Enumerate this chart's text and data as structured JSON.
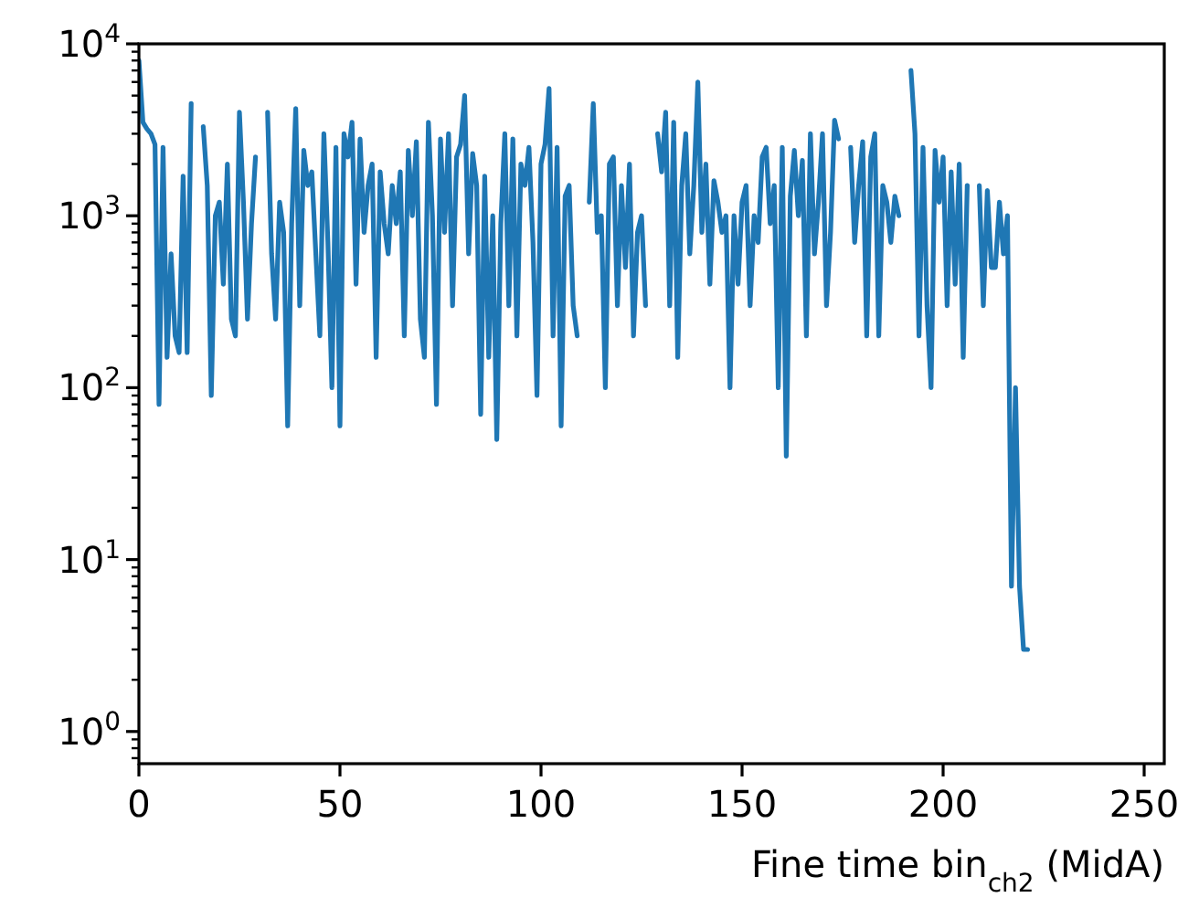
{
  "chart_data": {
    "type": "line",
    "xlabel": "Fine time bin$_{ch2}$ (MidA)",
    "log": "y",
    "grid": false,
    "marker": "none",
    "line_style": "solid",
    "xlim": [
      0,
      255
    ],
    "ylim": [
      0.65,
      10000
    ],
    "xticks": [
      0,
      50,
      100,
      150,
      200,
      250
    ],
    "yticks": [
      {
        "value": 0.7,
        "label": null
      },
      {
        "value": 0.8,
        "label": null
      },
      {
        "value": 0.9,
        "label": null
      },
      {
        "value": 1,
        "label": "10$^{0}$"
      },
      {
        "value": 2,
        "label": null
      },
      {
        "value": 3,
        "label": null
      },
      {
        "value": 4,
        "label": null
      },
      {
        "value": 5,
        "label": null
      },
      {
        "value": 6,
        "label": null
      },
      {
        "value": 7,
        "label": null
      },
      {
        "value": 8,
        "label": null
      },
      {
        "value": 9,
        "label": null
      },
      {
        "value": 10,
        "label": "10$^{1}$"
      },
      {
        "value": 20,
        "label": null
      },
      {
        "value": 30,
        "label": null
      },
      {
        "value": 40,
        "label": null
      },
      {
        "value": 50,
        "label": null
      },
      {
        "value": 60,
        "label": null
      },
      {
        "value": 70,
        "label": null
      },
      {
        "value": 80,
        "label": null
      },
      {
        "value": 90,
        "label": null
      },
      {
        "value": 100,
        "label": "10$^{2}$"
      },
      {
        "value": 200,
        "label": null
      },
      {
        "value": 300,
        "label": null
      },
      {
        "value": 400,
        "label": null
      },
      {
        "value": 500,
        "label": null
      },
      {
        "value": 600,
        "label": null
      },
      {
        "value": 700,
        "label": null
      },
      {
        "value": 800,
        "label": null
      },
      {
        "value": 900,
        "label": null
      },
      {
        "value": 1000,
        "label": "10$^{3}$"
      },
      {
        "value": 2000,
        "label": null
      },
      {
        "value": 3000,
        "label": null
      },
      {
        "value": 4000,
        "label": null
      },
      {
        "value": 5000,
        "label": null
      },
      {
        "value": 6000,
        "label": null
      },
      {
        "value": 7000,
        "label": null
      },
      {
        "value": 8000,
        "label": null
      },
      {
        "value": 9000,
        "label": null
      },
      {
        "value": 10000,
        "label": "10$^{4}$"
      }
    ],
    "series": [
      {
        "color": "#1f77b4",
        "x": [
          0,
          1,
          2,
          3,
          4,
          5,
          6,
          7,
          8,
          9,
          10,
          11,
          12,
          13,
          14,
          15,
          16,
          17,
          18,
          19,
          20,
          21,
          22,
          23,
          24,
          25,
          26,
          27,
          28,
          29,
          30,
          31,
          32,
          33,
          34,
          35,
          36,
          37,
          38,
          39,
          40,
          41,
          42,
          43,
          44,
          45,
          46,
          47,
          48,
          49,
          50,
          51,
          52,
          53,
          54,
          55,
          56,
          57,
          58,
          59,
          60,
          61,
          62,
          63,
          64,
          65,
          66,
          67,
          68,
          69,
          70,
          71,
          72,
          73,
          74,
          75,
          76,
          77,
          78,
          79,
          80,
          81,
          82,
          83,
          84,
          85,
          86,
          87,
          88,
          89,
          90,
          91,
          92,
          93,
          94,
          95,
          96,
          97,
          98,
          99,
          100,
          101,
          102,
          103,
          104,
          105,
          106,
          107,
          108,
          109,
          110,
          111,
          112,
          113,
          114,
          115,
          116,
          117,
          118,
          119,
          120,
          121,
          122,
          123,
          124,
          125,
          126,
          127,
          128,
          129,
          130,
          131,
          132,
          133,
          134,
          135,
          136,
          137,
          138,
          139,
          140,
          141,
          142,
          143,
          144,
          145,
          146,
          147,
          148,
          149,
          150,
          151,
          152,
          153,
          154,
          155,
          156,
          157,
          158,
          159,
          160,
          161,
          162,
          163,
          164,
          165,
          166,
          167,
          168,
          169,
          170,
          171,
          172,
          173,
          174,
          175,
          176,
          177,
          178,
          179,
          180,
          181,
          182,
          183,
          184,
          185,
          186,
          187,
          188,
          189,
          190,
          191,
          192,
          193,
          194,
          195,
          196,
          197,
          198,
          199,
          200,
          201,
          202,
          203,
          204,
          205,
          206,
          207,
          208,
          209,
          210,
          211,
          212,
          213,
          214,
          215,
          216,
          217,
          218,
          219,
          220,
          221
        ],
        "values": [
          8000,
          3500,
          3200,
          3000,
          2600,
          80,
          2500,
          150,
          600,
          200,
          160,
          1700,
          160,
          4500,
          null,
          null,
          3300,
          1500,
          90,
          1000,
          1200,
          400,
          2000,
          250,
          200,
          4000,
          1200,
          250,
          900,
          2200,
          null,
          null,
          4000,
          600,
          250,
          1200,
          800,
          60,
          900,
          4200,
          300,
          2400,
          1500,
          1800,
          600,
          200,
          3000,
          700,
          100,
          2500,
          60,
          3000,
          2200,
          3500,
          400,
          2800,
          800,
          1500,
          2000,
          150,
          1800,
          900,
          600,
          1500,
          900,
          1800,
          200,
          2400,
          1000,
          2700,
          250,
          150,
          3500,
          1000,
          80,
          2800,
          800,
          3000,
          300,
          2200,
          2600,
          5000,
          600,
          2300,
          1500,
          70,
          1700,
          150,
          1000,
          50,
          900,
          3000,
          300,
          2800,
          200,
          2000,
          1500,
          2500,
          700,
          90,
          2000,
          2600,
          5500,
          200,
          2500,
          60,
          1300,
          1500,
          300,
          200,
          null,
          null,
          1200,
          4500,
          800,
          1000,
          100,
          2000,
          2200,
          300,
          1500,
          500,
          2000,
          200,
          800,
          1000,
          300,
          null,
          null,
          3000,
          1800,
          4000,
          300,
          3500,
          150,
          1500,
          3000,
          600,
          1500,
          6000,
          800,
          2000,
          400,
          1600,
          1200,
          800,
          1000,
          100,
          1000,
          400,
          1200,
          1500,
          300,
          1000,
          700,
          2200,
          2500,
          900,
          1500,
          100,
          2500,
          40,
          1300,
          2400,
          1000,
          2100,
          200,
          3000,
          600,
          1200,
          3000,
          300,
          800,
          3600,
          2800,
          null,
          null,
          2500,
          700,
          1500,
          2700,
          200,
          2200,
          3000,
          200,
          1500,
          1200,
          700,
          1300,
          1000,
          null,
          null,
          7000,
          3000,
          200,
          2500,
          300,
          100,
          2400,
          1200,
          2200,
          300,
          1800,
          400,
          2000,
          150,
          1500,
          null,
          null,
          1500,
          300,
          1400,
          500,
          500,
          1200,
          600,
          1000,
          7,
          100,
          7,
          3,
          3
        ]
      }
    ]
  }
}
